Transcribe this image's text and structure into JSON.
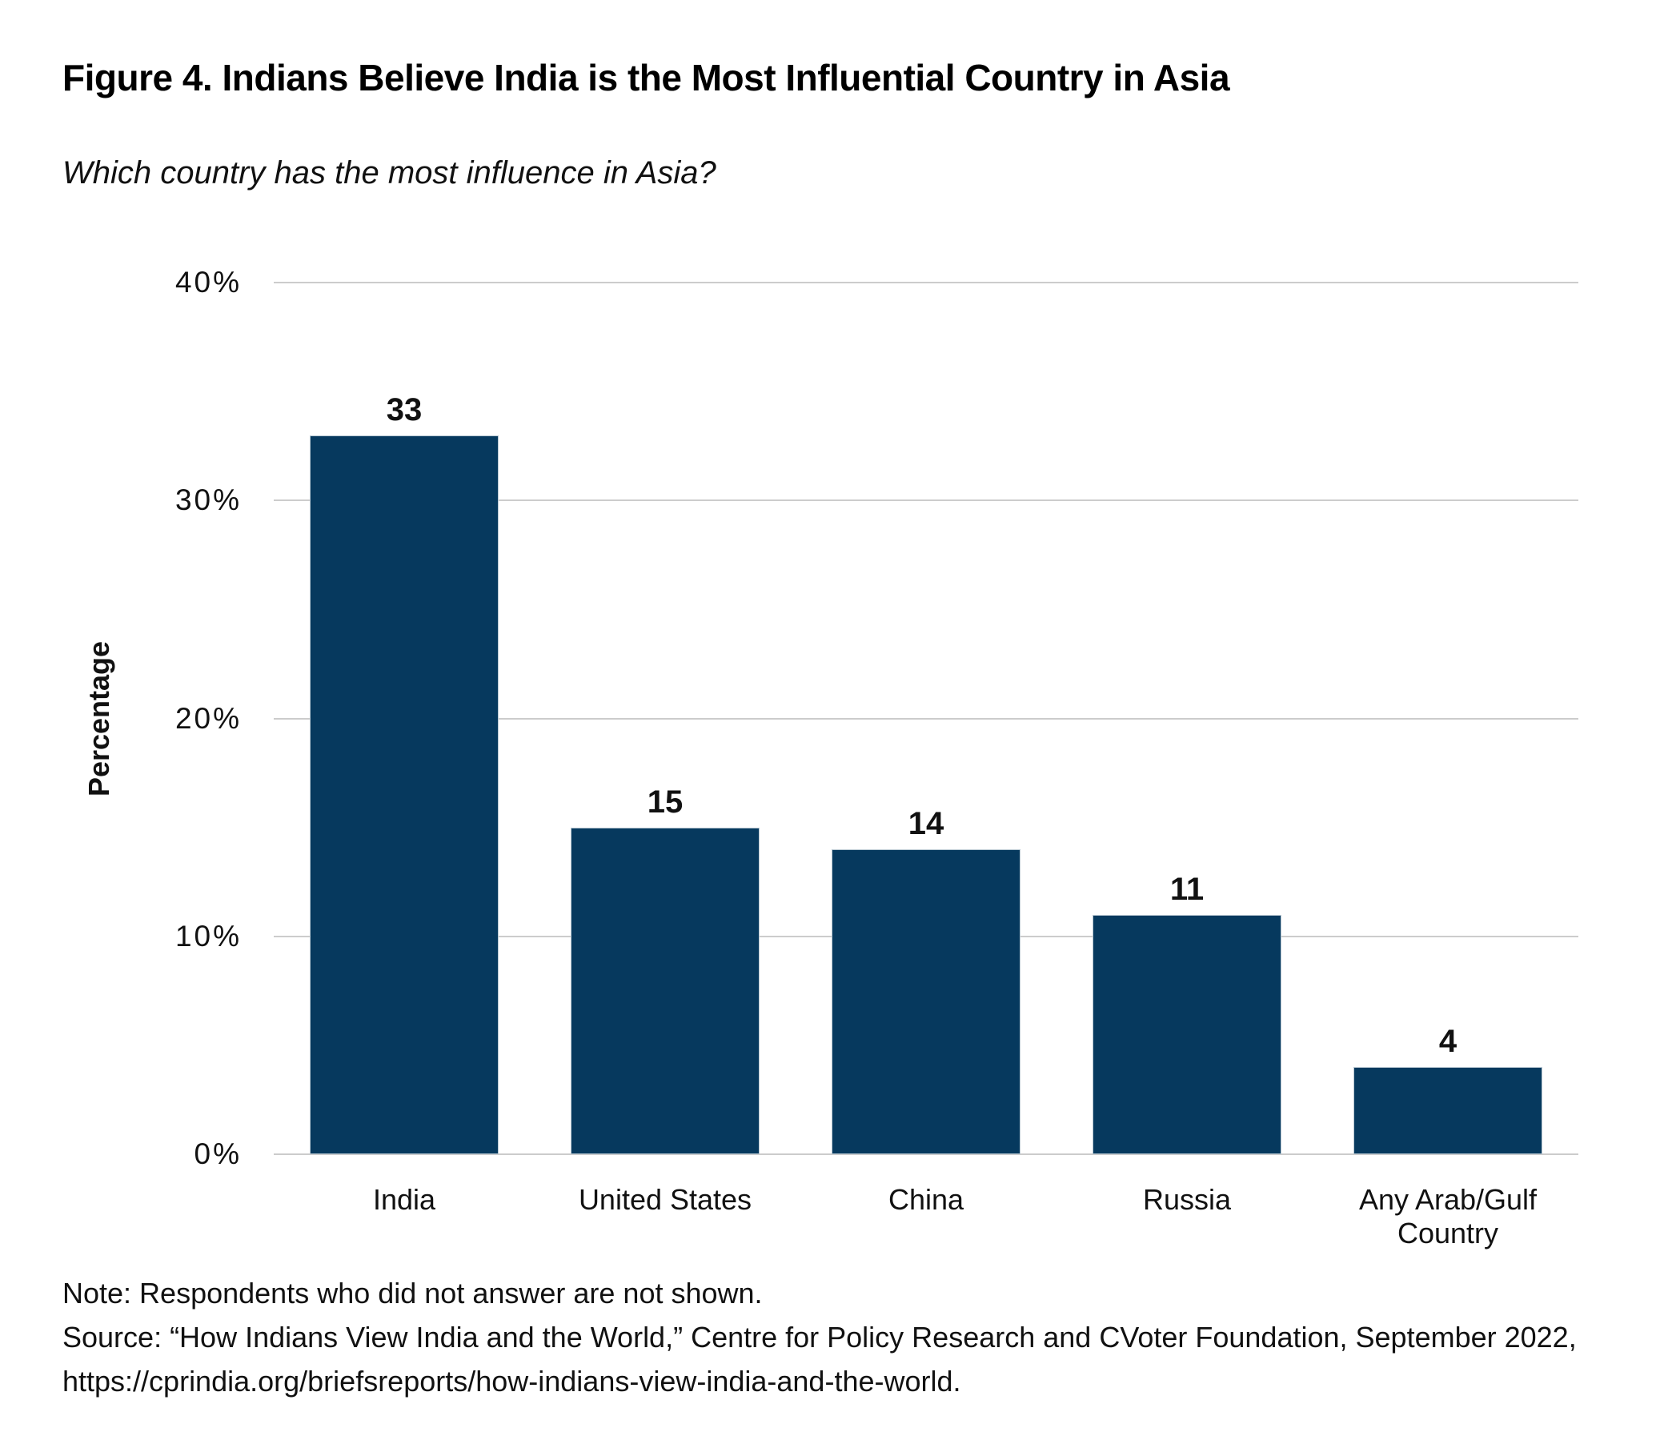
{
  "figure": {
    "title": "Figure 4. Indians Believe India is the Most Influential Country in Asia",
    "subtitle": "Which country has the most influence in Asia?",
    "note": "Note: Respondents who did not answer are not shown.",
    "source_line": "Source: “How Indians View India and the World,” Centre for Policy Research and CVoter Foundation, September 2022,",
    "source_url_line": "https://cprindia.org/briefsreports/how-indians-view-india-and-the-world."
  },
  "chart_data": {
    "type": "bar",
    "title": "Figure 4. Indians Believe India is the Most Influential Country in Asia",
    "subtitle": "Which country has the most influence in Asia?",
    "categories": [
      "India",
      "United States",
      "China",
      "Russia",
      "Any Arab/Gulf Country"
    ],
    "values": [
      33,
      15,
      14,
      11,
      4
    ],
    "data_labels": [
      "33",
      "15",
      "14",
      "11",
      "4"
    ],
    "xlabel": "",
    "ylabel": "Percentage",
    "ylim": [
      0,
      40
    ],
    "yticks": [
      0,
      10,
      20,
      30,
      40
    ],
    "ytick_labels": [
      "0%",
      "10%",
      "20%",
      "30%",
      "40%"
    ],
    "grid": "horizontal",
    "legend": "none",
    "bar_color": "#06395e",
    "bar_edge_color": "#b9c8d2",
    "gridline_color": "#cccccc",
    "text_color": "#111111"
  }
}
